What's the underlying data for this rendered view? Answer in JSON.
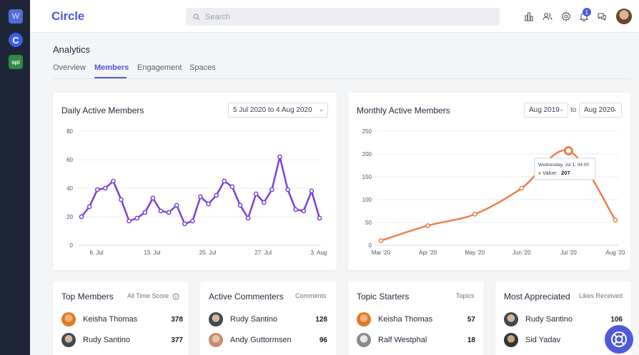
{
  "workspaces": [
    {
      "letter": "W"
    },
    {
      "letter": "C"
    },
    {
      "letter": "spi"
    }
  ],
  "app": {
    "name": "Circle"
  },
  "search": {
    "placeholder": "Search"
  },
  "notifications": {
    "count": "1"
  },
  "page": {
    "title": "Analytics",
    "tabs": [
      "Overview",
      "Members",
      "Engagement",
      "Spaces"
    ],
    "active_tab": "Members"
  },
  "daily": {
    "title": "Daily Active Members",
    "range": "5 Jul 2020 to 4 Aug 2020",
    "chart_data": {
      "type": "line",
      "title": "Daily Active Members",
      "xlabel": "",
      "ylabel": "",
      "ylim": [
        0,
        80
      ],
      "yticks": [
        0,
        20,
        40,
        60,
        80
      ],
      "xticks": [
        "6. Jul",
        "13. Jul",
        "20. Jul",
        "27. Jul",
        "3. Aug"
      ],
      "color": "#7a3fd8",
      "x": [
        0,
        1,
        2,
        3,
        4,
        5,
        6,
        7,
        8,
        9,
        10,
        11,
        12,
        13,
        14,
        15,
        16,
        17,
        18,
        19,
        20,
        21,
        22,
        23,
        24,
        25,
        26,
        27,
        28,
        29,
        30
      ],
      "values": [
        20,
        27,
        39,
        40,
        45,
        32,
        17,
        19,
        23,
        33,
        24,
        23,
        28,
        15,
        17,
        34,
        29,
        35,
        45,
        41,
        28,
        19,
        36,
        30,
        39,
        62,
        39,
        25,
        24,
        38,
        19
      ]
    }
  },
  "monthly": {
    "title": "Monthly Active Members",
    "from": "Aug 2019",
    "to_label": "to",
    "to": "Aug 2020",
    "chart_data": {
      "type": "line",
      "title": "Monthly Active Members",
      "xlabel": "",
      "ylabel": "",
      "ylim": [
        0,
        250
      ],
      "yticks": [
        0,
        50,
        100,
        150,
        200,
        250
      ],
      "categories": [
        "Mar '20",
        "Apr '20",
        "May '20",
        "Jun '20",
        "Jul '20",
        "Aug '20"
      ],
      "color": "#ef7d4a",
      "x_points": [
        0,
        1,
        2,
        3,
        4,
        5
      ],
      "values": [
        10,
        43,
        68,
        125,
        207,
        55
      ],
      "tooltip": {
        "date": "Wednesday, Jul 1, 04:00",
        "label": "Value:",
        "value": "207"
      }
    }
  },
  "leaderboards": [
    {
      "title": "Top Members",
      "subtitle": "All Time Score",
      "rows": [
        {
          "name": "Keisha Thomas",
          "score": "378"
        },
        {
          "name": "Rudy Santino",
          "score": "377"
        }
      ]
    },
    {
      "title": "Active Commenters",
      "subtitle": "Comments",
      "rows": [
        {
          "name": "Rudy Santino",
          "score": "128"
        },
        {
          "name": "Andy Guttormsen",
          "score": "96"
        }
      ]
    },
    {
      "title": "Topic Starters",
      "subtitle": "Topics",
      "rows": [
        {
          "name": "Keisha Thomas",
          "score": "57"
        },
        {
          "name": "Ralf Westphal",
          "score": "18"
        }
      ]
    },
    {
      "title": "Most Appreciated",
      "subtitle": "Likes Received",
      "rows": [
        {
          "name": "Rudy Santino",
          "score": "106"
        },
        {
          "name": "Sid Yadav",
          "score": ""
        }
      ]
    }
  ],
  "colors": {
    "accent": "#4f5ad8",
    "sidebar": "#1e2537",
    "daily_line": "#7a3fd8",
    "monthly_line": "#ef7d4a"
  }
}
